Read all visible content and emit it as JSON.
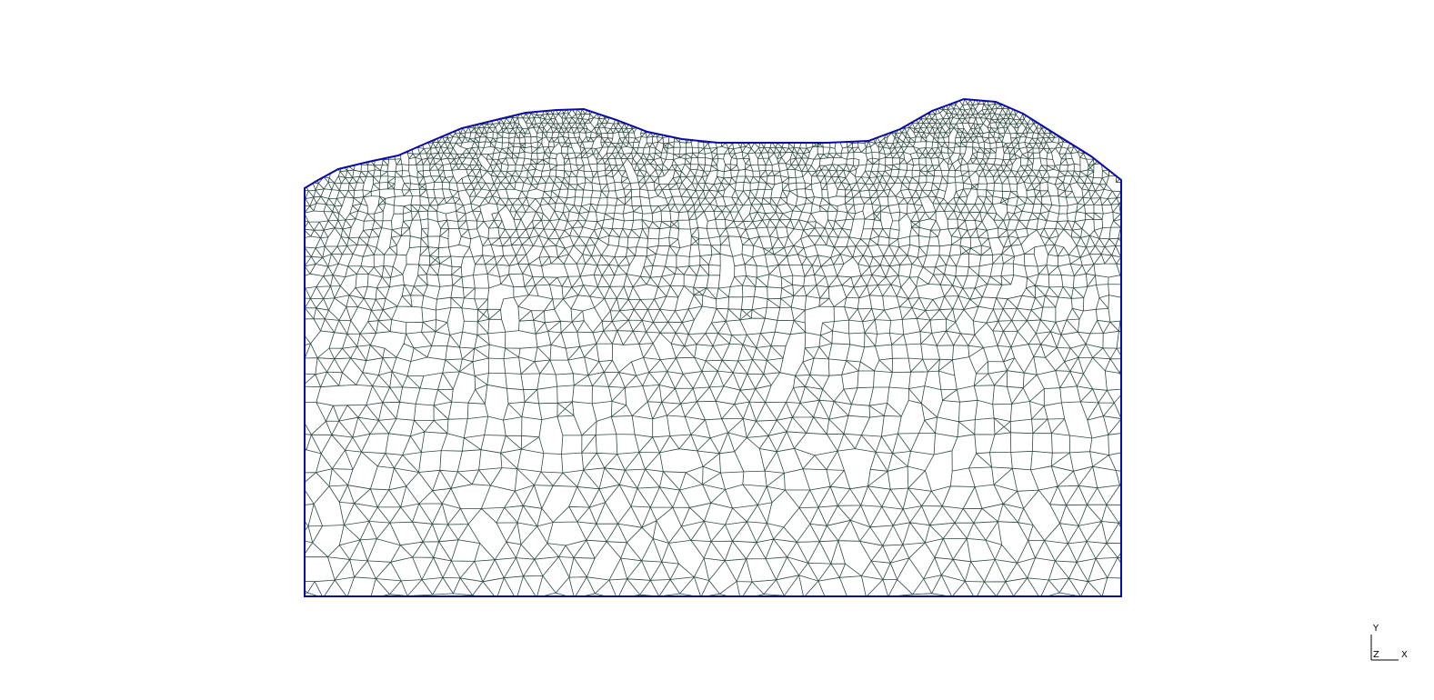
{
  "viewport": {
    "background": "#ffffff"
  },
  "mesh": {
    "boundary_color": "#0a0aa8",
    "edge_color": "#2d4a40",
    "element_type": "polygonal"
  },
  "axis_triad": {
    "y_label": "Y",
    "z_label": "Z",
    "x_label": "X",
    "color": "#000000"
  }
}
